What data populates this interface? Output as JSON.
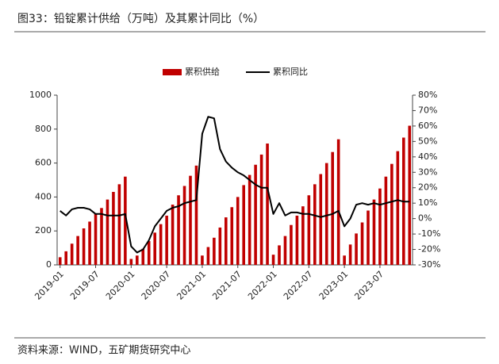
{
  "chart_data": {
    "type": "bar_line",
    "title": "图33：铅锭累计供给（万吨）及其累计同比（%）",
    "source": "资料来源：WIND，五矿期货研究中心",
    "categories": [
      "2019-01",
      null,
      null,
      null,
      null,
      null,
      "2019-07",
      null,
      null,
      null,
      null,
      null,
      "2020-01",
      null,
      null,
      null,
      null,
      null,
      "2020-07",
      null,
      null,
      null,
      null,
      null,
      "2021-01",
      null,
      null,
      null,
      null,
      null,
      "2021-07",
      null,
      null,
      null,
      null,
      null,
      "2022-01",
      null,
      null,
      null,
      null,
      null,
      "2022-07",
      null,
      null,
      null,
      null,
      null,
      "2023-01",
      null,
      null,
      null,
      null,
      null,
      "2023-07",
      null,
      null,
      null,
      null,
      null
    ],
    "series": [
      {
        "name": "累积供给",
        "color": "#c00000",
        "kind": "bar",
        "values": [
          45,
          80,
          125,
          170,
          215,
          255,
          300,
          335,
          385,
          430,
          475,
          520,
          35,
          55,
          95,
          140,
          190,
          240,
          290,
          355,
          410,
          465,
          525,
          585,
          55,
          105,
          160,
          220,
          280,
          340,
          400,
          470,
          530,
          590,
          650,
          715,
          60,
          115,
          170,
          235,
          290,
          345,
          410,
          475,
          535,
          600,
          665,
          740,
          55,
          120,
          185,
          250,
          320,
          385,
          450,
          520,
          595,
          670,
          750,
          820
        ]
      },
      {
        "name": "累积同比",
        "color": "#000000",
        "kind": "line",
        "axis": "y2",
        "values": [
          5,
          2,
          6,
          7,
          7,
          6,
          3,
          3,
          2,
          2,
          2,
          3,
          -18,
          -22,
          -20,
          -14,
          -5,
          0,
          5,
          7,
          8,
          10,
          11,
          12,
          55,
          66,
          65,
          45,
          37,
          33,
          30,
          28,
          25,
          22,
          20,
          20,
          3,
          10,
          2,
          4,
          4,
          3,
          3,
          2,
          1,
          2,
          3,
          5,
          -5,
          0,
          9,
          10,
          9,
          10,
          9,
          10,
          11,
          12,
          11,
          11
        ]
      }
    ],
    "ylim": [
      0,
      1000
    ],
    "yticks": [
      0,
      200,
      400,
      600,
      800,
      1000
    ],
    "y2lim": [
      -30,
      80
    ],
    "y2ticks": [
      {
        "value": -30,
        "label": "-30%"
      },
      {
        "value": -20,
        "label": "-20%"
      },
      {
        "value": -10,
        "label": "-10%"
      },
      {
        "value": 0,
        "label": "0%"
      },
      {
        "value": 10,
        "label": "10%"
      },
      {
        "value": 20,
        "label": "20%"
      },
      {
        "value": 30,
        "label": "30%"
      },
      {
        "value": 40,
        "label": "40%"
      },
      {
        "value": 50,
        "label": "50%"
      },
      {
        "value": 60,
        "label": "60%"
      },
      {
        "value": 70,
        "label": "70%"
      },
      {
        "value": 80,
        "label": "80%"
      }
    ],
    "legend": "top"
  }
}
